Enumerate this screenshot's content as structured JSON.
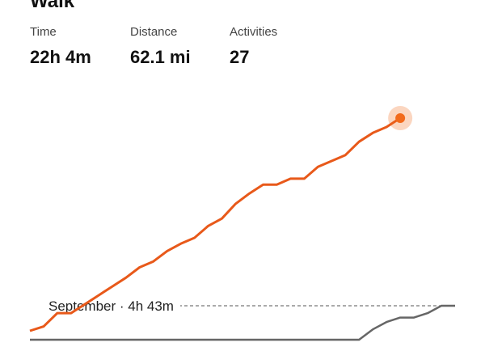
{
  "header": {
    "title": "Walk"
  },
  "stats": [
    {
      "label": "Time",
      "value": "22h 4m"
    },
    {
      "label": "Distance",
      "value": "62.1 mi"
    },
    {
      "label": "Activities",
      "value": "27"
    }
  ],
  "chart_data": {
    "type": "line",
    "reference_label": "September · 4h 43m",
    "series": [
      {
        "key": "current",
        "color": "#e8591a",
        "values": [
          0.0,
          0.3,
          1.2,
          1.2,
          1.8,
          2.4,
          3.0,
          3.6,
          4.3,
          4.7,
          5.4,
          5.9,
          6.3,
          7.1,
          7.6,
          8.6,
          9.3,
          9.9,
          9.9,
          10.3,
          10.3,
          11.1,
          11.5,
          11.9,
          12.8,
          13.4,
          13.8,
          14.4
        ]
      },
      {
        "key": "previous",
        "color": "#666666",
        "values": [
          -0.6,
          -0.6,
          -0.6,
          -0.6,
          -0.6,
          -0.6,
          -0.6,
          -0.6,
          -0.6,
          -0.6,
          -0.6,
          -0.6,
          -0.6,
          -0.6,
          -0.6,
          -0.6,
          -0.6,
          -0.6,
          -0.6,
          -0.6,
          -0.6,
          -0.6,
          -0.6,
          -0.6,
          -0.6,
          0.1,
          0.6,
          0.9,
          0.9,
          1.2,
          1.7,
          1.7
        ]
      }
    ],
    "reference_value": 1.7,
    "ylim": [
      -0.6,
      14.4
    ],
    "x_count": 32,
    "highlight_color": "#f26a1b"
  }
}
